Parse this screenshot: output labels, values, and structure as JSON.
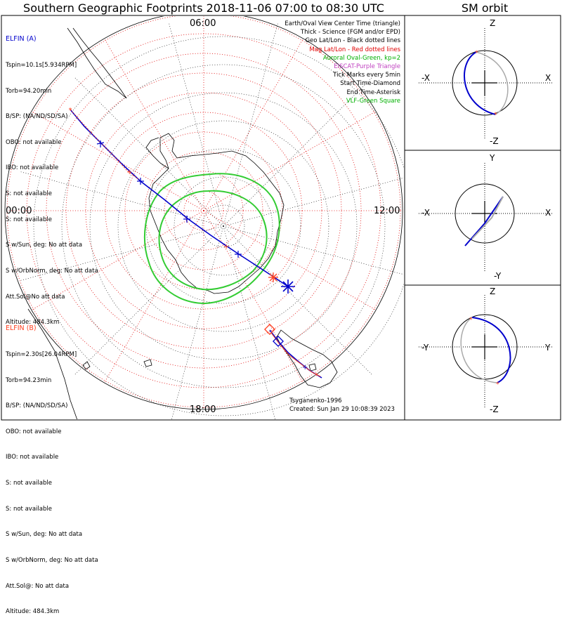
{
  "title": "Southern Geographic Footprints 2018-11-06 07:00 to 08:30 UTC",
  "orbit_title": "SM orbit",
  "hour_labels": {
    "top": "06:00",
    "left": "00:00",
    "right": "12:00",
    "bottom": "18:00"
  },
  "elfin_a": {
    "name": "ELFIN (A)",
    "lines": [
      "Tspin=10.1s[5.934RPM]",
      "Torb=94.20min",
      "B/SP: (NA/ND/SD/SA)",
      "OBO: not available",
      "IBO: not available",
      "S: not available",
      "S: not available",
      "S w/Sun, deg: No att data",
      "S w/OrbNorm, deg: No att data",
      "Att.Sol@No att data",
      "Altitude: 484.3km"
    ]
  },
  "elfin_b": {
    "name": "ELFIN (B)",
    "lines": [
      "Tspin=2.30s[26.04RPM]",
      "Torb=94.23min",
      "B/SP: (NA/ND/SD/SA)",
      "OBO: not available",
      "IBO: not available",
      "S: not available",
      "S: not available",
      "S w/Sun, deg: No att data",
      "S w/OrbNorm, deg: No att data",
      "Att.Sol@: No att data",
      "Altitude: 484.3km"
    ]
  },
  "legend": [
    {
      "text": "Earth/Oval View Center Time (triangle)",
      "color": "#000000"
    },
    {
      "text": "Thick - Science (FGM and/or EPD)",
      "color": "#000000"
    },
    {
      "text": "Geo Lat/Lon - Black dotted lines",
      "color": "#000000"
    },
    {
      "text": "Mag Lat/Lon - Red dotted lines",
      "color": "#e00000"
    },
    {
      "text": "Auroral Oval-Green, kp=2",
      "color": "#00b000"
    },
    {
      "text": "EISCAT-Purple Triangle",
      "color": "#c040c0"
    },
    {
      "text": "Tick Marks every 5min",
      "color": "#000000"
    },
    {
      "text": "Start Time-Diamond",
      "color": "#000000"
    },
    {
      "text": "End Time-Asterisk",
      "color": "#000000"
    },
    {
      "text": "VLF-Green Square",
      "color": "#00b000"
    }
  ],
  "credit_author": "Tsyganenko-1996",
  "credit_created": "Created: Sun Jan 29 10:08:39 2023",
  "orbit_panels": [
    {
      "top": "Z",
      "bottom": "-Z",
      "left": "-X",
      "right": "X"
    },
    {
      "top": "Y",
      "bottom": "-Y",
      "left": "-X",
      "right": "X"
    },
    {
      "top": "Z",
      "bottom": "-Z",
      "left": "-Y",
      "right": "Y"
    }
  ],
  "colors": {
    "elfin_a": "#0000cc",
    "elfin_b": "#ff4020",
    "oval": "#33cc33",
    "mag_grid": "#e00000",
    "geo_grid": "#000000",
    "orbit_grey": "#aaaaaa"
  }
}
